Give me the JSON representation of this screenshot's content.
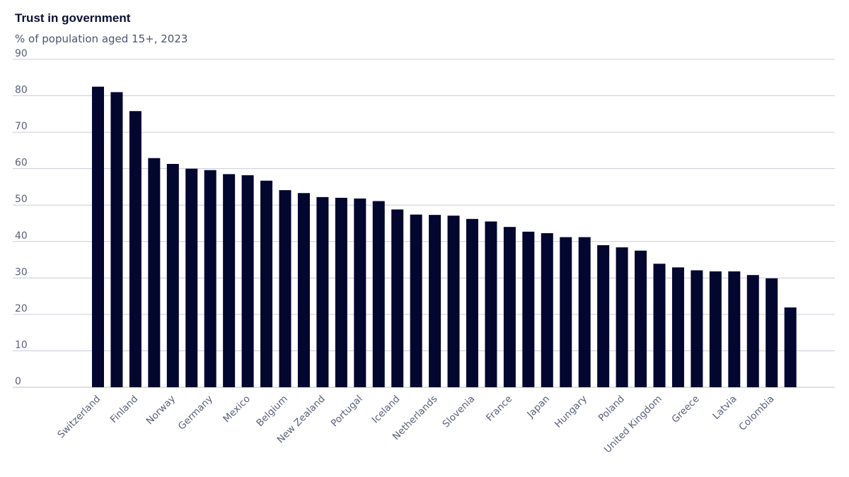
{
  "chart_data": {
    "type": "bar",
    "title": "Trust in government",
    "subtitle": "% of population aged 15+, 2023",
    "xlabel": "",
    "ylabel": "",
    "ylim": [
      0,
      90
    ],
    "yticks": [
      0,
      10,
      20,
      30,
      40,
      50,
      60,
      70,
      80,
      90
    ],
    "grid": true,
    "bar_color": "#03062f",
    "grid_color": "#c9ccd9",
    "categories": [
      "Switzerland",
      "",
      "Finland",
      "",
      "Norway",
      "",
      "Germany",
      "",
      "Mexico",
      "",
      "Belgium",
      "",
      "New Zealand",
      "",
      "Portugal",
      "",
      "Iceland",
      "",
      "Netherlands",
      "",
      "Slovenia",
      "",
      "France",
      "",
      "Japan",
      "",
      "Hungary",
      "",
      "Poland",
      "",
      "United Kingdom",
      "",
      "Greece",
      "",
      "Latvia",
      "",
      "Colombia",
      ""
    ],
    "values": [
      82.5,
      81.0,
      75.8,
      62.9,
      61.3,
      60.0,
      59.6,
      58.5,
      58.2,
      56.7,
      54.1,
      53.3,
      52.2,
      52.0,
      51.8,
      51.1,
      48.8,
      47.4,
      47.3,
      47.1,
      46.2,
      45.5,
      44.0,
      42.7,
      42.3,
      41.2,
      41.2,
      39.0,
      38.4,
      37.5,
      33.9,
      32.9,
      32.1,
      31.8,
      31.8,
      30.8,
      29.9,
      21.9
    ]
  }
}
